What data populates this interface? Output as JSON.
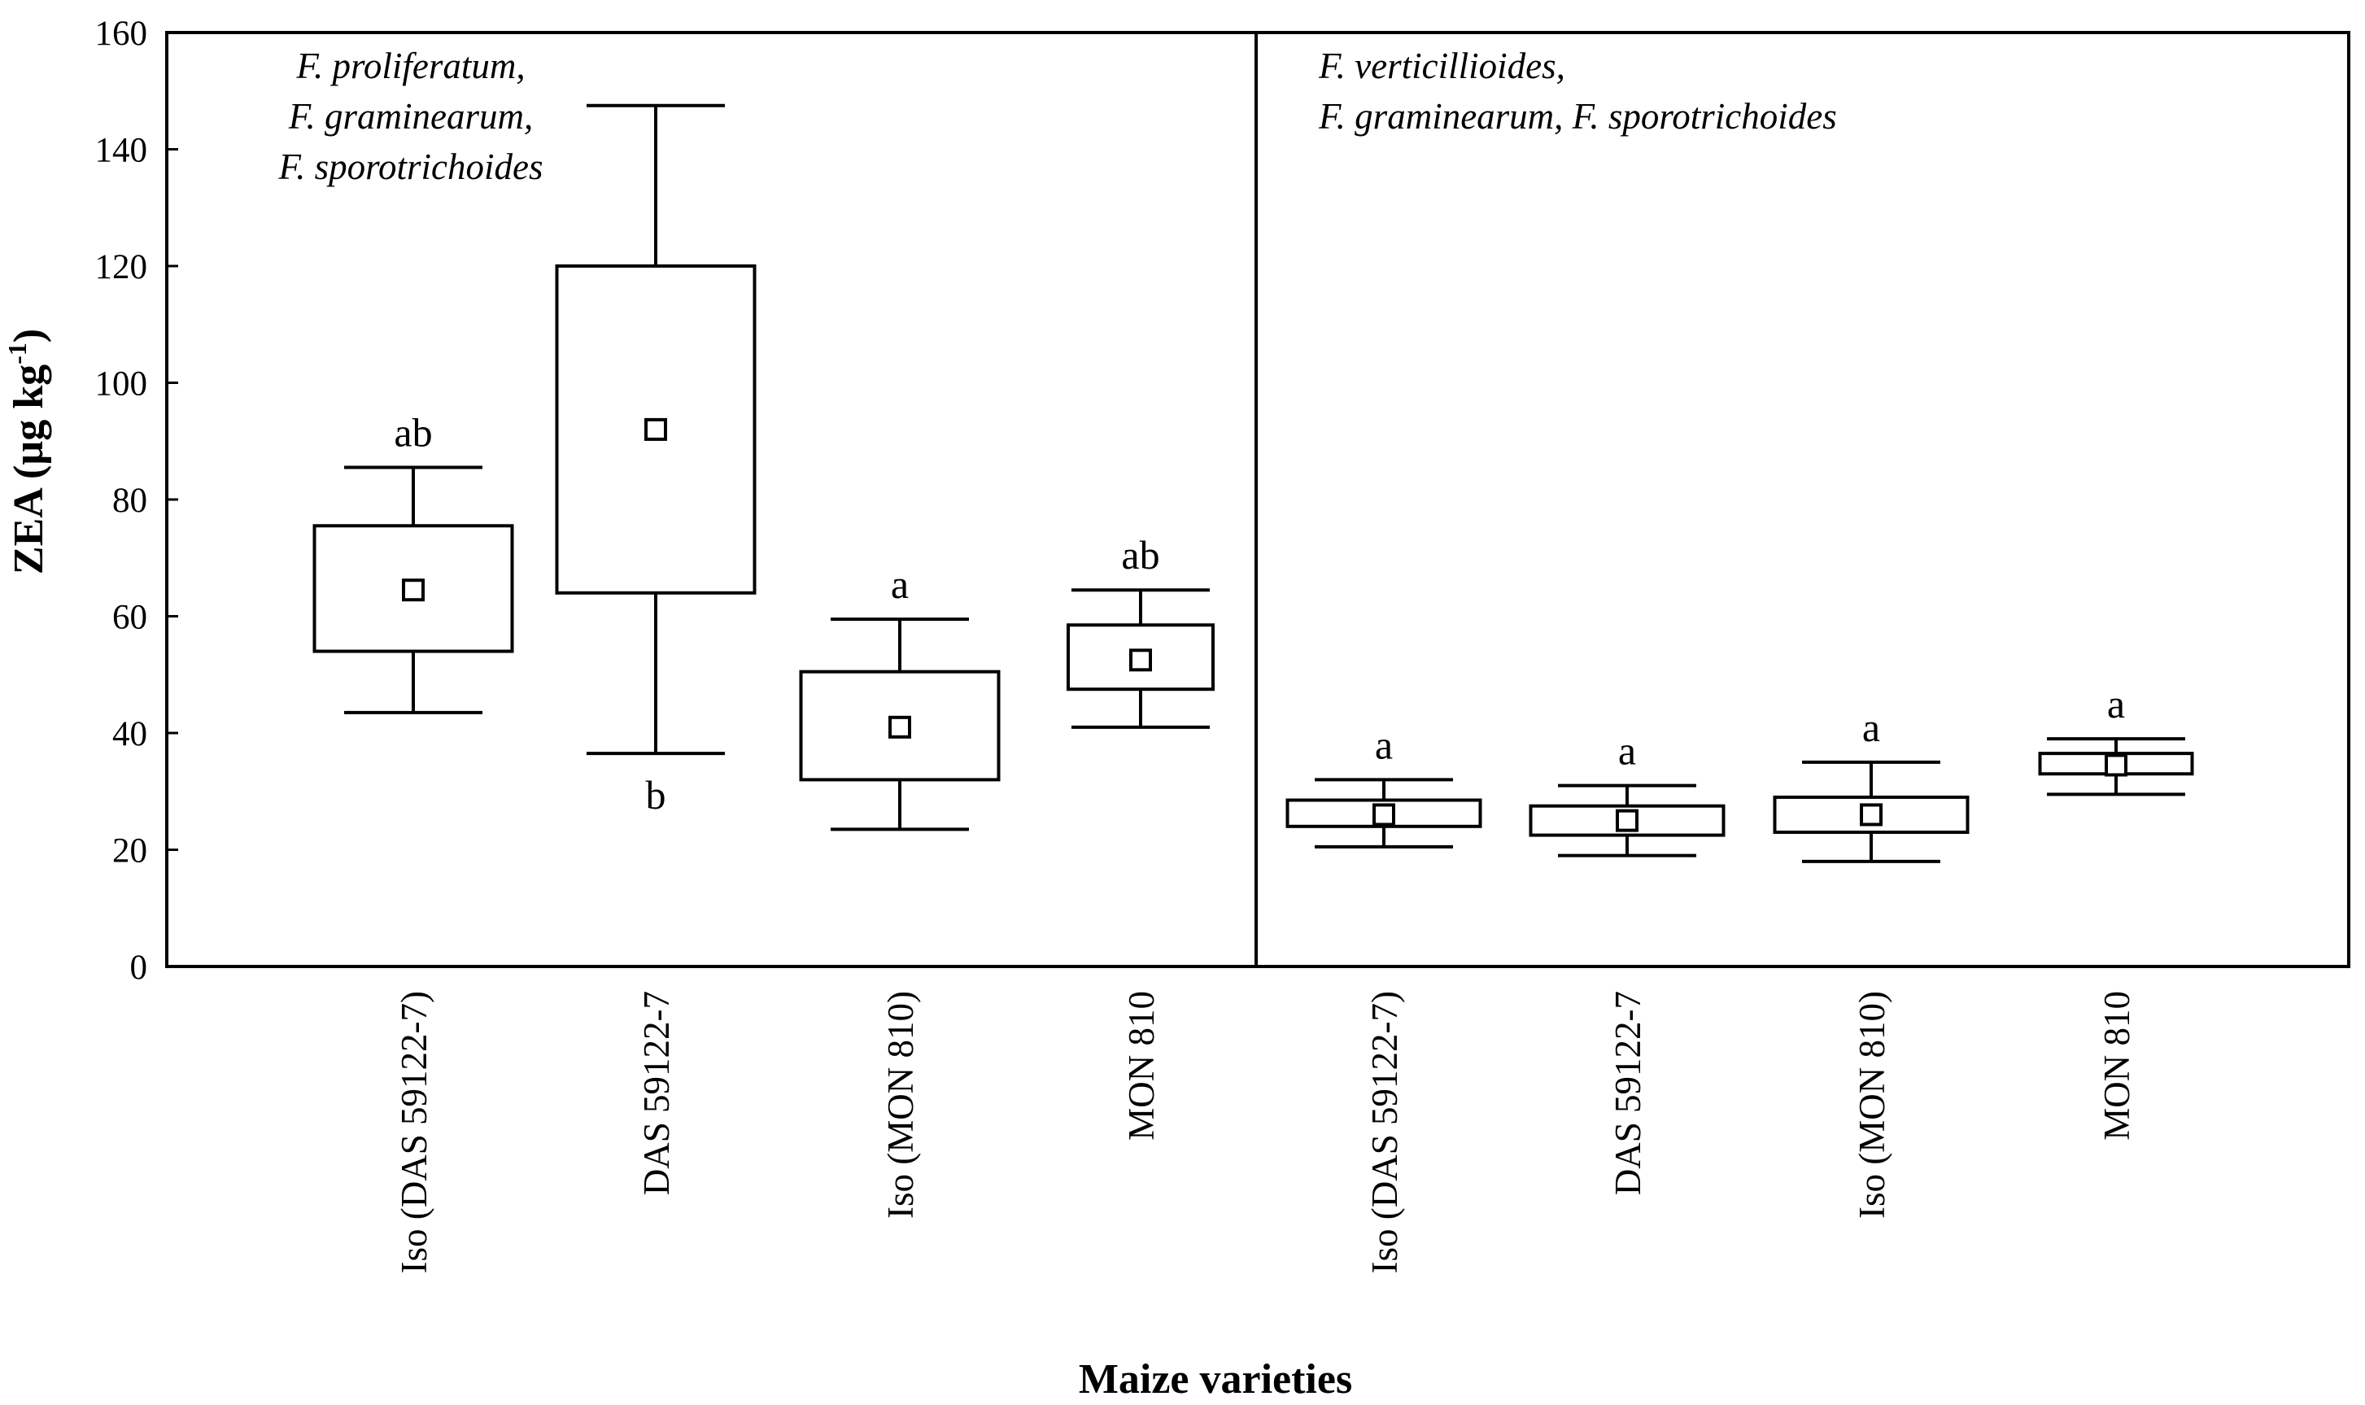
{
  "chart_data": {
    "type": "box",
    "title": "",
    "xlabel": "Maize varieties",
    "ylabel_main": "ZEA  (µg kg",
    "ylabel_sup": "-1",
    "ylabel_close": ")",
    "ylim": [
      0,
      160
    ],
    "yticks": [
      0,
      20,
      40,
      60,
      80,
      100,
      120,
      140,
      160
    ],
    "grid": false,
    "panels": [
      {
        "species_lines": [
          "F. proliferatum,",
          "F. graminearum,",
          "F. sporotrichoides"
        ],
        "categories": [
          "Iso (DAS 59122-7)",
          "DAS 59122-7",
          "Iso (MON 810)",
          "MON 810"
        ],
        "boxes": [
          {
            "category": "Iso (DAS 59122-7)",
            "whisker_low": 43.5,
            "box_low": 54,
            "mean": 64.5,
            "box_high": 75.5,
            "whisker_high": 85.5,
            "letter": "ab",
            "letter_pos": "above"
          },
          {
            "category": "DAS 59122-7",
            "whisker_low": 36.5,
            "box_low": 64,
            "mean": 92,
            "box_high": 120,
            "whisker_high": 147.5,
            "letter": "b",
            "letter_pos": "below"
          },
          {
            "category": "Iso (MON 810)",
            "whisker_low": 23.5,
            "box_low": 32,
            "mean": 41,
            "box_high": 50.5,
            "whisker_high": 59.5,
            "letter": "a",
            "letter_pos": "above"
          },
          {
            "category": "MON 810",
            "whisker_low": 41,
            "box_low": 47.5,
            "mean": 52.5,
            "box_high": 58.5,
            "whisker_high": 64.5,
            "letter": "ab",
            "letter_pos": "above"
          }
        ]
      },
      {
        "species_lines": [
          "F. verticillioides,",
          "F. graminearum, F. sporotrichoides"
        ],
        "categories": [
          "Iso (DAS 59122-7)",
          "DAS 59122-7",
          "Iso (MON 810)",
          "MON 810"
        ],
        "boxes": [
          {
            "category": "Iso (DAS 59122-7)",
            "whisker_low": 20.5,
            "box_low": 24,
            "mean": 26,
            "box_high": 28.5,
            "whisker_high": 32,
            "letter": "a",
            "letter_pos": "above"
          },
          {
            "category": "DAS 59122-7",
            "whisker_low": 19,
            "box_low": 22.5,
            "mean": 25,
            "box_high": 27.5,
            "whisker_high": 31,
            "letter": "a",
            "letter_pos": "above"
          },
          {
            "category": "Iso (MON 810)",
            "whisker_low": 18,
            "box_low": 23,
            "mean": 26,
            "box_high": 29,
            "whisker_high": 35,
            "letter": "a",
            "letter_pos": "above"
          },
          {
            "category": "MON 810",
            "whisker_low": 29.5,
            "box_low": 33,
            "mean": 34.5,
            "box_high": 36.5,
            "whisker_high": 39,
            "letter": "a",
            "letter_pos": "above"
          }
        ]
      }
    ]
  }
}
